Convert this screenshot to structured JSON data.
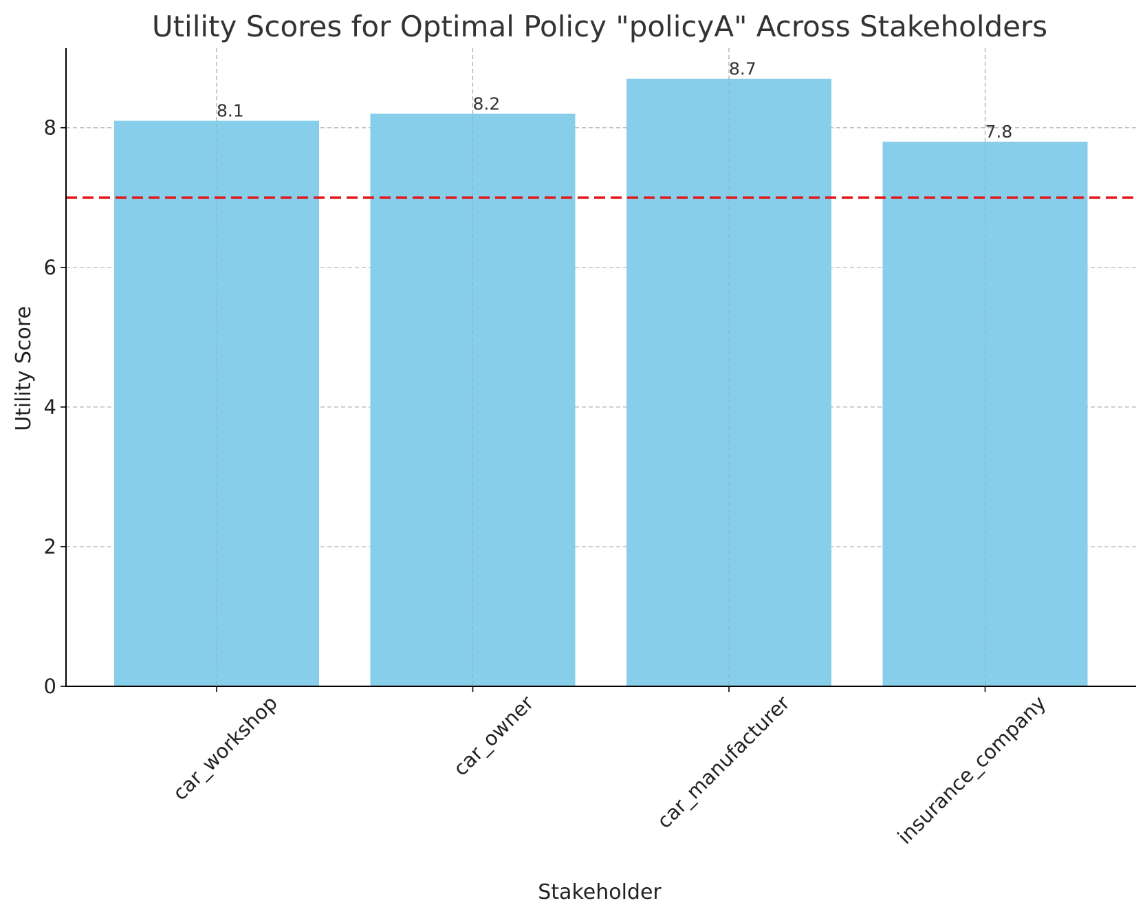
{
  "chart_data": {
    "type": "bar",
    "title": "Utility Scores for Optimal Policy \"policyA\" Across Stakeholders",
    "xlabel": "Stakeholder",
    "ylabel": "Utility Score",
    "categories": [
      "car_workshop",
      "car_owner",
      "car_manufacturer",
      "insurance_company"
    ],
    "values": [
      8.1,
      8.2,
      8.7,
      7.8
    ],
    "data_labels": [
      "8.1",
      "8.2",
      "8.7",
      "7.8"
    ],
    "ylim": [
      0,
      9.14
    ],
    "yticks": [
      0,
      2,
      4,
      6,
      8
    ],
    "ytick_labels": [
      "0",
      "2",
      "4",
      "6",
      "8"
    ],
    "threshold": 7,
    "grid": true,
    "colors": {
      "bar": "#87ceeb",
      "threshold": "#e31a1c",
      "grid": "#b0b0b0",
      "axis": "#000000",
      "text": "#333333"
    }
  }
}
